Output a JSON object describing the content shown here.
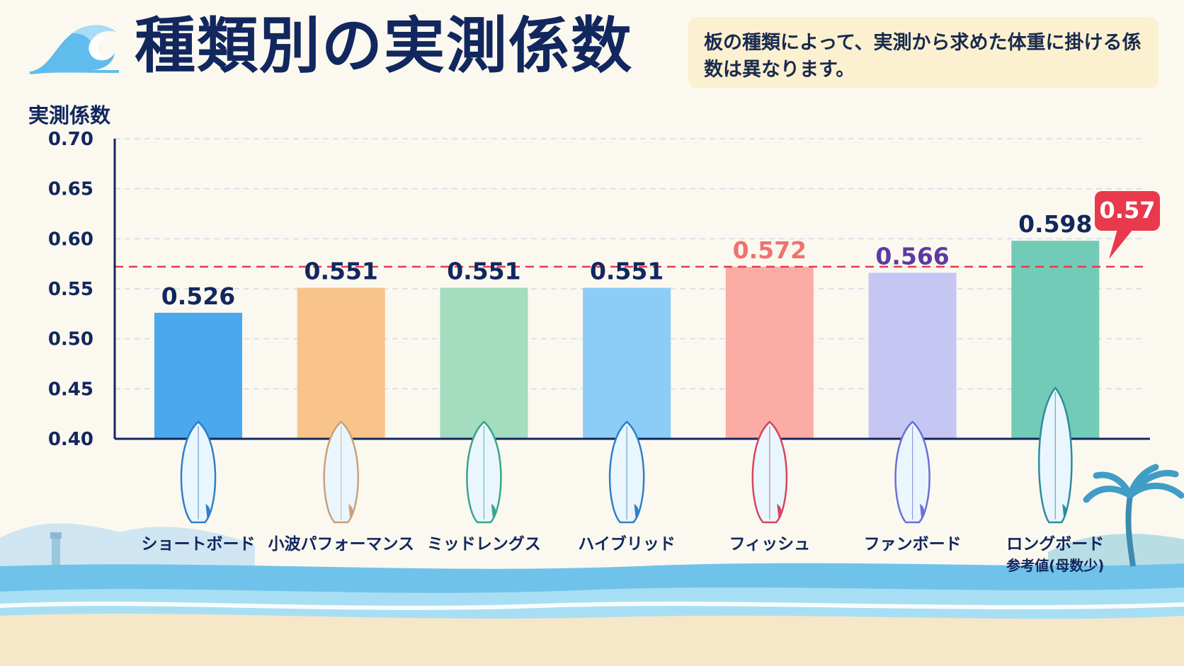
{
  "header": {
    "title": "種類別の実測係数",
    "note": "板の種類によって、実測から求めた体重に掛ける係数は異なります。"
  },
  "icons": {
    "title_icon": "wave-icon",
    "board_icon": "surfboard-icon",
    "callout_icon": "speech-bubble-icon"
  },
  "chart_data": {
    "type": "bar",
    "ylabel": "実測係数",
    "ylim": [
      0.4,
      0.7
    ],
    "yticks": [
      "0.70",
      "0.65",
      "0.60",
      "0.55",
      "0.50",
      "0.45",
      "0.40"
    ],
    "grid": true,
    "categories": [
      "ショートボード",
      "小波パフォーマンス",
      "ミッドレングス",
      "ハイブリッド",
      "フィッシュ",
      "ファンボード",
      "ロングボード"
    ],
    "category_notes": [
      "",
      "",
      "",
      "",
      "",
      "",
      "参考値(母数少)"
    ],
    "values": [
      0.526,
      0.551,
      0.551,
      0.551,
      0.572,
      0.566,
      0.598
    ],
    "value_labels": [
      "0.526",
      "0.551",
      "0.551",
      "0.551",
      "0.572",
      "0.566",
      "0.598"
    ],
    "bar_colors": [
      "#4aa8ec",
      "#f8c48a",
      "#a3dcbf",
      "#8ccdf7",
      "#fbaca5",
      "#c6c6f3",
      "#72cbb7"
    ],
    "label_colors": [
      "#11275e",
      "#11275e",
      "#11275e",
      "#11275e",
      "#f0726e",
      "#5a3aa3",
      "#11275e"
    ],
    "board_colors": [
      "#2f7fc9",
      "#c9a07a",
      "#3aa58a",
      "#2f7fc9",
      "#d6455e",
      "#6b6fd6",
      "#2b8ca0"
    ],
    "reference_line": {
      "value": 0.572,
      "label": "0.57",
      "color": "#e8394d"
    }
  }
}
